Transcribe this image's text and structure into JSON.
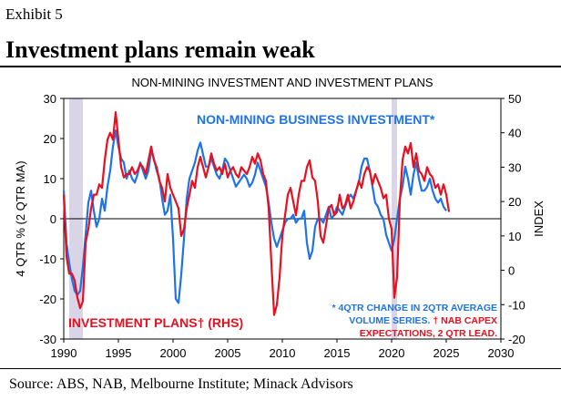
{
  "exhibit": "Exhibit 5",
  "headline": "Investment plans remain weak",
  "source": "Source: ABS, NAB, Melbourne Institute; Minack Advisors",
  "colors": {
    "investment": "#1e73e8",
    "plans": "#e8101e",
    "recession": "#d9d4e6",
    "axis": "#000000"
  },
  "chart_data": {
    "type": "line",
    "title": "NON-MINING INVESTMENT AND INVESTMENT PLANS",
    "ylabel": "4 QTR % (2 QTR MA)",
    "y2label": "INDEX",
    "xlim": [
      1990,
      2030
    ],
    "ylim": [
      -30,
      30
    ],
    "y2lim": [
      -20,
      50
    ],
    "xticks": [
      "1990",
      "1995",
      "2000",
      "2005",
      "2010",
      "2015",
      "2020",
      "2025",
      "2030"
    ],
    "yticks": [
      "-30",
      "-20",
      "-10",
      "0",
      "10",
      "20",
      "30"
    ],
    "y2ticks": [
      "-20",
      "-10",
      "0",
      "10",
      "20",
      "30",
      "40",
      "50"
    ],
    "recessions": [
      [
        1990.5,
        1991.75
      ],
      [
        2020.0,
        2020.5
      ]
    ],
    "series": [
      {
        "name": "NON-MINING BUSINESS INVESTMENT*",
        "axis": "left",
        "points": [
          [
            1990,
            7
          ],
          [
            1990.25,
            -6
          ],
          [
            1990.5,
            -11
          ],
          [
            1990.75,
            -15
          ],
          [
            1991,
            -18
          ],
          [
            1991.25,
            -19
          ],
          [
            1991.5,
            -18
          ],
          [
            1991.75,
            -12
          ],
          [
            1992,
            -4
          ],
          [
            1992.25,
            4
          ],
          [
            1992.5,
            7
          ],
          [
            1992.75,
            2
          ],
          [
            1993,
            -2
          ],
          [
            1993.25,
            0
          ],
          [
            1993.5,
            5
          ],
          [
            1993.75,
            2
          ],
          [
            1994,
            8
          ],
          [
            1994.25,
            12
          ],
          [
            1994.5,
            18
          ],
          [
            1994.75,
            22
          ],
          [
            1995,
            18
          ],
          [
            1995.25,
            15
          ],
          [
            1995.5,
            14
          ],
          [
            1995.75,
            10
          ],
          [
            1996,
            12
          ],
          [
            1996.25,
            10
          ],
          [
            1996.5,
            9
          ],
          [
            1996.75,
            11
          ],
          [
            1997,
            14
          ],
          [
            1997.25,
            12
          ],
          [
            1997.5,
            10
          ],
          [
            1997.75,
            12
          ],
          [
            1998,
            17
          ],
          [
            1998.25,
            15
          ],
          [
            1998.5,
            12
          ],
          [
            1998.75,
            10
          ],
          [
            1999,
            5
          ],
          [
            1999.25,
            1
          ],
          [
            1999.5,
            2
          ],
          [
            1999.75,
            6
          ],
          [
            2000,
            -5
          ],
          [
            2000.25,
            -20
          ],
          [
            2000.5,
            -21
          ],
          [
            2000.75,
            -14
          ],
          [
            2001,
            -5
          ],
          [
            2001.25,
            5
          ],
          [
            2001.5,
            10
          ],
          [
            2001.75,
            12
          ],
          [
            2002,
            14
          ],
          [
            2002.25,
            17
          ],
          [
            2002.5,
            19
          ],
          [
            2002.75,
            16
          ],
          [
            2003,
            13
          ],
          [
            2003.25,
            13
          ],
          [
            2003.5,
            15
          ],
          [
            2003.75,
            13
          ],
          [
            2004,
            11
          ],
          [
            2004.25,
            10
          ],
          [
            2004.5,
            12
          ],
          [
            2004.75,
            15
          ],
          [
            2005,
            14
          ],
          [
            2005.25,
            12
          ],
          [
            2005.5,
            10
          ],
          [
            2005.75,
            8
          ],
          [
            2006,
            9
          ],
          [
            2006.25,
            10
          ],
          [
            2006.5,
            11
          ],
          [
            2006.75,
            10
          ],
          [
            2007,
            8
          ],
          [
            2007.25,
            9
          ],
          [
            2007.5,
            11
          ],
          [
            2007.75,
            14
          ],
          [
            2008,
            12
          ],
          [
            2008.25,
            10
          ],
          [
            2008.5,
            8
          ],
          [
            2008.75,
            4
          ],
          [
            2009,
            -1
          ],
          [
            2009.25,
            -5
          ],
          [
            2009.5,
            -7
          ],
          [
            2009.75,
            -5
          ],
          [
            2010,
            -3
          ],
          [
            2010.25,
            -1
          ],
          [
            2010.5,
            0
          ],
          [
            2010.75,
            0
          ],
          [
            2011,
            1
          ],
          [
            2011.25,
            -1
          ],
          [
            2011.5,
            0
          ],
          [
            2011.75,
            0
          ],
          [
            2012,
            2
          ],
          [
            2012.25,
            -6
          ],
          [
            2012.5,
            -10
          ],
          [
            2012.75,
            -8
          ],
          [
            2013,
            -2
          ],
          [
            2013.25,
            0
          ],
          [
            2013.5,
            0
          ],
          [
            2013.75,
            -1
          ],
          [
            2014,
            1
          ],
          [
            2014.25,
            3
          ],
          [
            2014.5,
            0
          ],
          [
            2014.75,
            1
          ],
          [
            2015,
            3
          ],
          [
            2015.25,
            2
          ],
          [
            2015.5,
            1
          ],
          [
            2015.75,
            3
          ],
          [
            2016,
            5
          ],
          [
            2016.25,
            6
          ],
          [
            2016.5,
            5
          ],
          [
            2016.75,
            7
          ],
          [
            2017,
            9
          ],
          [
            2017.25,
            13
          ],
          [
            2017.5,
            15
          ],
          [
            2017.75,
            15
          ],
          [
            2018,
            12
          ],
          [
            2018.25,
            8
          ],
          [
            2018.5,
            4
          ],
          [
            2018.75,
            3
          ],
          [
            2019,
            1
          ],
          [
            2019.25,
            0
          ],
          [
            2019.5,
            -4
          ],
          [
            2019.75,
            -6
          ],
          [
            2020,
            -8
          ],
          [
            2020.25,
            -5
          ],
          [
            2020.5,
            0
          ],
          [
            2020.75,
            5
          ],
          [
            2021,
            8
          ],
          [
            2021.25,
            13
          ],
          [
            2021.5,
            10
          ],
          [
            2021.75,
            6
          ],
          [
            2022,
            11
          ],
          [
            2022.25,
            14
          ],
          [
            2022.5,
            10
          ],
          [
            2022.75,
            7
          ],
          [
            2023,
            7
          ],
          [
            2023.25,
            8
          ],
          [
            2023.5,
            10
          ],
          [
            2023.75,
            7
          ],
          [
            2024,
            5
          ],
          [
            2024.25,
            4
          ],
          [
            2024.5,
            5
          ],
          [
            2024.75,
            3
          ],
          [
            2025,
            2
          ]
        ]
      },
      {
        "name": "INVESTMENT PLANS† (RHS)",
        "axis": "right",
        "points": [
          [
            1990,
            22
          ],
          [
            1990.25,
            4
          ],
          [
            1990.5,
            -1
          ],
          [
            1990.75,
            -1
          ],
          [
            1991,
            -3
          ],
          [
            1991.25,
            -8
          ],
          [
            1991.5,
            -11
          ],
          [
            1991.75,
            -9
          ],
          [
            1992,
            8
          ],
          [
            1992.25,
            12
          ],
          [
            1992.5,
            18
          ],
          [
            1992.75,
            22
          ],
          [
            1993,
            22
          ],
          [
            1993.25,
            25
          ],
          [
            1993.5,
            24
          ],
          [
            1993.75,
            32
          ],
          [
            1994,
            38
          ],
          [
            1994.25,
            40
          ],
          [
            1994.5,
            38
          ],
          [
            1994.75,
            46
          ],
          [
            1995,
            38
          ],
          [
            1995.25,
            30
          ],
          [
            1995.5,
            27
          ],
          [
            1995.75,
            28
          ],
          [
            1996,
            28
          ],
          [
            1996.25,
            30
          ],
          [
            1996.5,
            28
          ],
          [
            1996.75,
            29
          ],
          [
            1997,
            31
          ],
          [
            1997.25,
            30
          ],
          [
            1997.5,
            28
          ],
          [
            1997.75,
            32
          ],
          [
            1998,
            36
          ],
          [
            1998.25,
            32
          ],
          [
            1998.5,
            30
          ],
          [
            1998.75,
            26
          ],
          [
            1999,
            24
          ],
          [
            1999.25,
            20
          ],
          [
            1999.5,
            28
          ],
          [
            1999.75,
            24
          ],
          [
            2000,
            22
          ],
          [
            2000.25,
            20
          ],
          [
            2000.5,
            18
          ],
          [
            2000.75,
            10
          ],
          [
            2001,
            12
          ],
          [
            2001.25,
            18
          ],
          [
            2001.5,
            22
          ],
          [
            2001.75,
            26
          ],
          [
            2002,
            24
          ],
          [
            2002.25,
            30
          ],
          [
            2002.5,
            33
          ],
          [
            2002.75,
            30
          ],
          [
            2003,
            27
          ],
          [
            2003.25,
            30
          ],
          [
            2003.5,
            34
          ],
          [
            2003.75,
            31
          ],
          [
            2004,
            29
          ],
          [
            2004.25,
            30
          ],
          [
            2004.5,
            28
          ],
          [
            2004.75,
            31
          ],
          [
            2005,
            27
          ],
          [
            2005.25,
            29
          ],
          [
            2005.5,
            30
          ],
          [
            2005.75,
            28
          ],
          [
            2006,
            27
          ],
          [
            2006.25,
            30
          ],
          [
            2006.5,
            29
          ],
          [
            2006.75,
            28
          ],
          [
            2007,
            30
          ],
          [
            2007.25,
            33
          ],
          [
            2007.5,
            31
          ],
          [
            2007.75,
            34
          ],
          [
            2008,
            32
          ],
          [
            2008.25,
            28
          ],
          [
            2008.5,
            26
          ],
          [
            2008.75,
            18
          ],
          [
            2009,
            2
          ],
          [
            2009.25,
            -13
          ],
          [
            2009.5,
            -10
          ],
          [
            2009.75,
            -2
          ],
          [
            2010,
            10
          ],
          [
            2010.25,
            16
          ],
          [
            2010.5,
            22
          ],
          [
            2010.75,
            24
          ],
          [
            2011,
            20
          ],
          [
            2011.25,
            16
          ],
          [
            2011.5,
            22
          ],
          [
            2011.75,
            26
          ],
          [
            2012,
            26
          ],
          [
            2012.25,
            30
          ],
          [
            2012.5,
            32
          ],
          [
            2012.75,
            27
          ],
          [
            2013,
            26
          ],
          [
            2013.25,
            20
          ],
          [
            2013.5,
            10
          ],
          [
            2013.75,
            8
          ],
          [
            2014,
            13
          ],
          [
            2014.25,
            18
          ],
          [
            2014.5,
            19
          ],
          [
            2014.75,
            16
          ],
          [
            2015,
            17
          ],
          [
            2015.25,
            22
          ],
          [
            2015.5,
            18
          ],
          [
            2015.75,
            19
          ],
          [
            2016,
            22
          ],
          [
            2016.25,
            18
          ],
          [
            2016.5,
            20
          ],
          [
            2016.75,
            23
          ],
          [
            2017,
            26
          ],
          [
            2017.25,
            24
          ],
          [
            2017.5,
            28
          ],
          [
            2017.75,
            30
          ],
          [
            2018,
            29
          ],
          [
            2018.25,
            25
          ],
          [
            2018.5,
            28
          ],
          [
            2018.75,
            26
          ],
          [
            2019,
            24
          ],
          [
            2019.25,
            21
          ],
          [
            2019.5,
            22
          ],
          [
            2019.75,
            15
          ],
          [
            2020,
            12
          ],
          [
            2020.25,
            -8
          ],
          [
            2020.5,
            -2
          ],
          [
            2020.75,
            20
          ],
          [
            2021,
            32
          ],
          [
            2021.25,
            36
          ],
          [
            2021.5,
            34
          ],
          [
            2021.75,
            37
          ],
          [
            2022,
            30
          ],
          [
            2022.25,
            34
          ],
          [
            2022.5,
            29
          ],
          [
            2022.75,
            28
          ],
          [
            2023,
            26
          ],
          [
            2023.25,
            30
          ],
          [
            2023.5,
            28
          ],
          [
            2023.75,
            27
          ],
          [
            2024,
            24
          ],
          [
            2024.25,
            25
          ],
          [
            2024.5,
            22
          ],
          [
            2024.75,
            25
          ],
          [
            2025,
            22
          ],
          [
            2025.25,
            17
          ]
        ]
      }
    ],
    "annotations": {
      "series1_label": "NON-MINING BUSINESS INVESTMENT*",
      "series2_label": "INVESTMENT PLANS† (RHS)",
      "note_line1": "* 4QTR CHANGE IN 2QTR AVERAGE",
      "note_line2": "VOLUME SERIES.  † NAB CAPEX",
      "note_line3": "EXPECTATIONS, 2 QTR LEAD."
    }
  }
}
